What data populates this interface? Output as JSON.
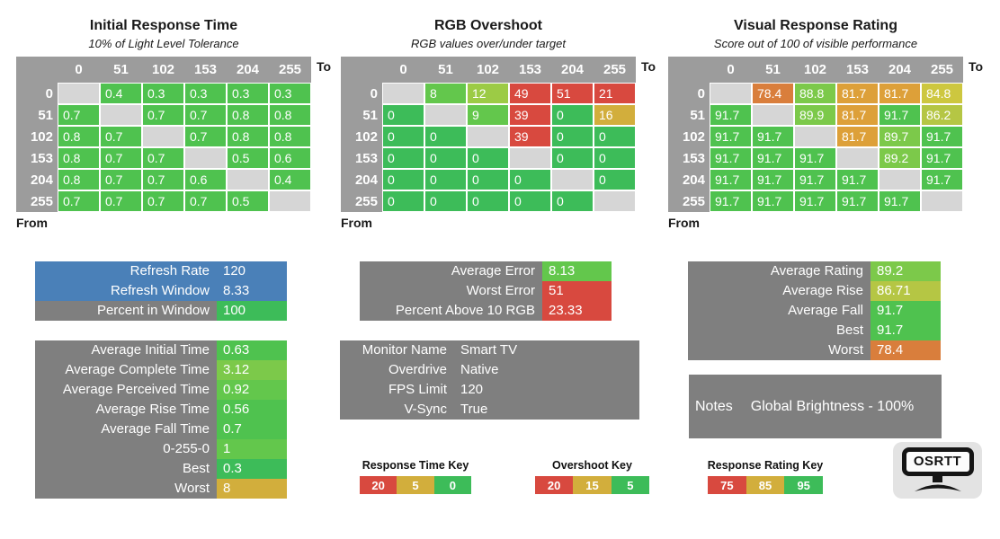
{
  "palette": {
    "header_gray": "#9C9C9C",
    "diag_gray": "#D6D6D6",
    "panel_gray": "#7F7F7F",
    "blue": "#4A80B8",
    "green": "#3DBC59",
    "g1": "#4FC24F",
    "g2": "#63C74C",
    "g3": "#7CC94A",
    "g4": "#9CCB45",
    "g5": "#B5C644",
    "g6": "#CDC73F",
    "gold": "#D2AE3C",
    "amber": "#DDA039",
    "orange": "#D97E3C",
    "red": "#D8493F",
    "logo_bg": "#E3E3E3"
  },
  "chart_data": [
    {
      "type": "heatmap",
      "title": "Initial Response Time",
      "subtitle": "10% of Light Level Tolerance",
      "axis_to": "To",
      "axis_from": "From",
      "levels": [
        "0",
        "51",
        "102",
        "153",
        "204",
        "255"
      ],
      "values": [
        [
          null,
          0.4,
          0.3,
          0.3,
          0.3,
          0.3
        ],
        [
          0.7,
          null,
          0.7,
          0.7,
          0.8,
          0.8
        ],
        [
          0.8,
          0.7,
          null,
          0.7,
          0.8,
          0.8
        ],
        [
          0.8,
          0.7,
          0.7,
          null,
          0.5,
          0.6
        ],
        [
          0.8,
          0.7,
          0.7,
          0.6,
          null,
          0.4
        ],
        [
          0.7,
          0.7,
          0.7,
          0.7,
          0.5,
          null
        ]
      ],
      "colors": [
        [
          null,
          "g1",
          "g1",
          "g1",
          "g1",
          "g1"
        ],
        [
          "g1",
          null,
          "g1",
          "g1",
          "g1",
          "g1"
        ],
        [
          "g1",
          "g1",
          null,
          "g1",
          "g1",
          "g1"
        ],
        [
          "g1",
          "g1",
          "g1",
          null,
          "g1",
          "g1"
        ],
        [
          "g1",
          "g1",
          "g1",
          "g1",
          null,
          "g1"
        ],
        [
          "g1",
          "g1",
          "g1",
          "g1",
          "g1",
          null
        ]
      ]
    },
    {
      "type": "heatmap",
      "title": "RGB Overshoot",
      "subtitle": "RGB values over/under target",
      "axis_to": "To",
      "axis_from": "From",
      "levels": [
        "0",
        "51",
        "102",
        "153",
        "204",
        "255"
      ],
      "values": [
        [
          null,
          8,
          12,
          49,
          51,
          21
        ],
        [
          0,
          null,
          9,
          39,
          0,
          16
        ],
        [
          0,
          0,
          null,
          39,
          0,
          0
        ],
        [
          0,
          0,
          0,
          null,
          0,
          0
        ],
        [
          0,
          0,
          0,
          0,
          null,
          0
        ],
        [
          0,
          0,
          0,
          0,
          0,
          null
        ]
      ],
      "colors": [
        [
          null,
          "g2",
          "g4",
          "red",
          "red",
          "red"
        ],
        [
          "green",
          null,
          "g2",
          "red",
          "green",
          "gold"
        ],
        [
          "green",
          "green",
          null,
          "red",
          "green",
          "green"
        ],
        [
          "green",
          "green",
          "green",
          null,
          "green",
          "green"
        ],
        [
          "green",
          "green",
          "green",
          "green",
          null,
          "green"
        ],
        [
          "green",
          "green",
          "green",
          "green",
          "green",
          null
        ]
      ]
    },
    {
      "type": "heatmap",
      "title": "Visual Response Rating",
      "subtitle": "Score out of 100 of visible performance",
      "axis_to": "To",
      "axis_from": "From",
      "levels": [
        "0",
        "51",
        "102",
        "153",
        "204",
        "255"
      ],
      "values": [
        [
          null,
          78.4,
          88.8,
          81.7,
          81.7,
          84.8
        ],
        [
          91.7,
          null,
          89.9,
          81.7,
          91.7,
          86.2
        ],
        [
          91.7,
          91.7,
          null,
          81.7,
          89.7,
          91.7
        ],
        [
          91.7,
          91.7,
          91.7,
          null,
          89.2,
          91.7
        ],
        [
          91.7,
          91.7,
          91.7,
          91.7,
          null,
          91.7
        ],
        [
          91.7,
          91.7,
          91.7,
          91.7,
          91.7,
          null
        ]
      ],
      "colors": [
        [
          null,
          "orange",
          "g3",
          "amber",
          "amber",
          "g6"
        ],
        [
          "g1",
          null,
          "g3",
          "amber",
          "g1",
          "g5"
        ],
        [
          "g1",
          "g1",
          null,
          "amber",
          "g3",
          "g1"
        ],
        [
          "g1",
          "g1",
          "g1",
          null,
          "g3",
          "g1"
        ],
        [
          "g1",
          "g1",
          "g1",
          "g1",
          null,
          "g1"
        ],
        [
          "g1",
          "g1",
          "g1",
          "g1",
          "g1",
          null
        ]
      ]
    }
  ],
  "panels": [
    {
      "id": "refresh",
      "rows": [
        {
          "label": "Refresh Rate",
          "value": "120",
          "row_bg": "blue"
        },
        {
          "label": "Refresh Window",
          "value": "8.33",
          "row_bg": "blue"
        },
        {
          "label": "Percent in Window",
          "value": "100",
          "value_bg": "green"
        }
      ]
    },
    {
      "id": "time-stats",
      "rows": [
        {
          "label": "Average Initial Time",
          "value": "0.63",
          "value_bg": "g1"
        },
        {
          "label": "Average Complete Time",
          "value": "3.12",
          "value_bg": "g3"
        },
        {
          "label": "Average Perceived Time",
          "value": "0.92",
          "value_bg": "g2"
        },
        {
          "label": "Average Rise Time",
          "value": "0.56",
          "value_bg": "g1"
        },
        {
          "label": "Average Fall Time",
          "value": "0.7",
          "value_bg": "g1"
        },
        {
          "label": "0-255-0",
          "value": "1",
          "value_bg": "g2"
        },
        {
          "label": "Best",
          "value": "0.3",
          "value_bg": "green"
        },
        {
          "label": "Worst",
          "value": "8",
          "value_bg": "gold"
        }
      ]
    },
    {
      "id": "overshoot-stats",
      "rows": [
        {
          "label": "Average Error",
          "value": "8.13",
          "value_bg": "g2"
        },
        {
          "label": "Worst Error",
          "value": "51",
          "value_bg": "red"
        },
        {
          "label": "Percent Above 10 RGB",
          "value": "23.33",
          "value_bg": "red"
        }
      ]
    },
    {
      "id": "monitor-info",
      "rows": [
        {
          "label": "Monitor Name",
          "value": "Smart TV"
        },
        {
          "label": "Overdrive",
          "value": "Native"
        },
        {
          "label": "FPS Limit",
          "value": "120"
        },
        {
          "label": "V-Sync",
          "value": "True"
        }
      ]
    },
    {
      "id": "rating-stats",
      "rows": [
        {
          "label": "Average Rating",
          "value": "89.2",
          "value_bg": "g3"
        },
        {
          "label": "Average Rise",
          "value": "86.71",
          "value_bg": "g5"
        },
        {
          "label": "Average Fall",
          "value": "91.7",
          "value_bg": "g1"
        },
        {
          "label": "Best",
          "value": "91.7",
          "value_bg": "g1"
        },
        {
          "label": "Worst",
          "value": "78.4",
          "value_bg": "orange"
        }
      ]
    }
  ],
  "notes": {
    "label": "Notes",
    "text": "Global Brightness - 100%"
  },
  "keys": [
    {
      "title": "Response Time Key",
      "segments": [
        {
          "label": "20",
          "color": "red"
        },
        {
          "label": "5",
          "color": "gold"
        },
        {
          "label": "0",
          "color": "green"
        }
      ]
    },
    {
      "title": "Overshoot Key",
      "segments": [
        {
          "label": "20",
          "color": "red"
        },
        {
          "label": "15",
          "color": "gold"
        },
        {
          "label": "5",
          "color": "green"
        }
      ]
    },
    {
      "title": "Response Rating Key",
      "segments": [
        {
          "label": "75",
          "color": "red"
        },
        {
          "label": "85",
          "color": "gold"
        },
        {
          "label": "95",
          "color": "green"
        }
      ]
    }
  ],
  "logo": {
    "text": "OSRTT"
  }
}
